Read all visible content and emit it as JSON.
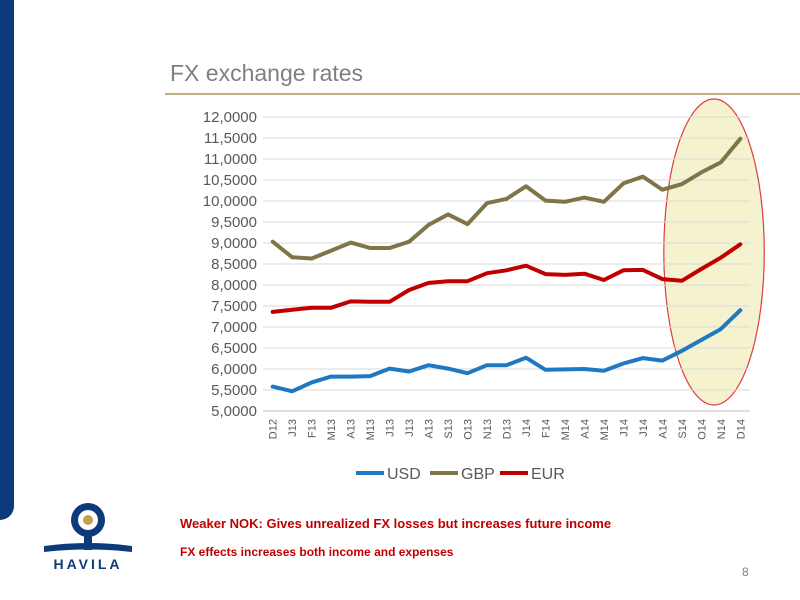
{
  "slide": {
    "title": "FX exchange rates",
    "note_primary": "Weaker NOK: Gives unrealized FX losses but increases future income",
    "note_secondary": "FX effects increases both income and expenses",
    "page_number": "8",
    "logo_text": "HAVILA"
  },
  "colors": {
    "brand_navy": "#0d3a7a",
    "accent_red": "#c00000",
    "rule_gold": "#bfae86",
    "highlight_fill": "#f3f0c8",
    "highlight_stroke": "#e03c3c"
  },
  "chart_data": {
    "type": "line",
    "title": "",
    "xlabel": "",
    "ylabel": "",
    "ylim": [
      5.0,
      12.0
    ],
    "y_ticks": [
      "5,0000",
      "5,5000",
      "6,0000",
      "6,5000",
      "7,0000",
      "7,5000",
      "8,0000",
      "8,5000",
      "9,0000",
      "9,5000",
      "10,0000",
      "10,5000",
      "11,0000",
      "11,5000",
      "12,0000"
    ],
    "categories": [
      "D12",
      "J13",
      "F13",
      "M13",
      "A13",
      "M13",
      "J13",
      "J13",
      "A13",
      "S13",
      "O13",
      "N13",
      "D13",
      "J14",
      "F14",
      "M14",
      "A14",
      "M14",
      "J14",
      "J14",
      "A14",
      "S14",
      "O14",
      "N14",
      "D14"
    ],
    "grid": true,
    "legend_position": "bottom",
    "highlight": "ellipse around S14–D14",
    "series": [
      {
        "name": "USD",
        "color": "#1f78c1",
        "values": [
          5.58,
          5.47,
          5.68,
          5.82,
          5.82,
          5.83,
          6.01,
          5.94,
          6.09,
          6.01,
          5.9,
          6.09,
          6.09,
          6.27,
          5.98,
          5.99,
          6.0,
          5.96,
          6.13,
          6.26,
          6.2,
          6.43,
          6.69,
          6.95,
          7.4
        ]
      },
      {
        "name": "GBP",
        "color": "#7f7547",
        "values": [
          9.03,
          8.66,
          8.63,
          8.82,
          9.01,
          8.88,
          8.88,
          9.03,
          9.43,
          9.68,
          9.45,
          9.95,
          10.05,
          10.35,
          10.01,
          9.98,
          10.08,
          9.98,
          10.42,
          10.58,
          10.27,
          10.4,
          10.68,
          10.92,
          11.48
        ]
      },
      {
        "name": "EUR",
        "color": "#c00000",
        "values": [
          7.36,
          7.41,
          7.46,
          7.46,
          7.61,
          7.6,
          7.6,
          7.88,
          8.05,
          8.09,
          8.09,
          8.28,
          8.35,
          8.46,
          8.26,
          8.24,
          8.27,
          8.12,
          8.35,
          8.36,
          8.14,
          8.1,
          8.38,
          8.65,
          8.97
        ]
      }
    ]
  }
}
